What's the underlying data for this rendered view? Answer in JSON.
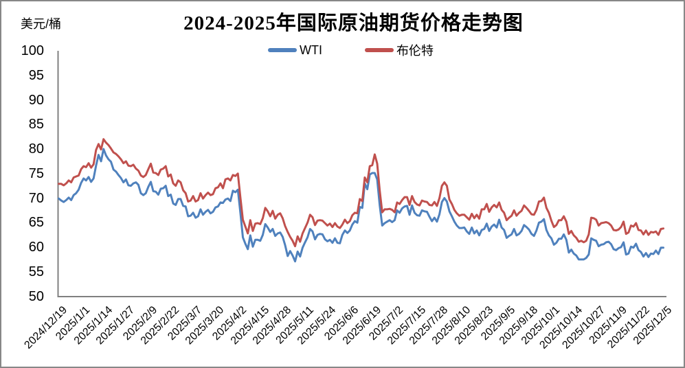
{
  "title": "2024-2025年国际原油期货价格走势图",
  "y_axis_unit": "美元/桶",
  "colors": {
    "wti": "#4F81BD",
    "brent": "#C0504D",
    "axis": "#808080"
  },
  "chart_data": {
    "type": "line",
    "title": "2024-2025年国际原油期货价格走势图",
    "xlabel": "",
    "ylabel": "美元/桶",
    "ylim": [
      50,
      100
    ],
    "y_ticks": [
      100,
      95,
      90,
      85,
      80,
      75,
      70,
      65,
      60,
      55,
      50
    ],
    "grid": false,
    "legend_position": "top",
    "x_tick_labels": [
      "2024/12/19",
      "2025/1/1",
      "2025/1/14",
      "2025/1/27",
      "2025/2/9",
      "2025/2/22",
      "2025/3/7",
      "2025/3/20",
      "2025/4/2",
      "2025/4/15",
      "2025/4/28",
      "2025/5/11",
      "2025/5/24",
      "2025/6/6",
      "2025/6/19",
      "2025/7/2",
      "2025/7/15",
      "2025/7/28",
      "2025/8/10",
      "2025/8/23",
      "2025/9/5",
      "2025/9/18",
      "2025/10/1",
      "2025/10/14",
      "2025/10/27",
      "2025/11/9",
      "2025/11/22",
      "2025/12/5"
    ],
    "points_per_label": 9,
    "series": [
      {
        "name": "WTI",
        "color": "#4F81BD",
        "values": [
          69.9,
          69.5,
          69.2,
          69.6,
          70.1,
          69.6,
          70.6,
          71.0,
          71.7,
          73.1,
          74.0,
          73.6,
          74.3,
          73.3,
          74.0,
          76.6,
          78.8,
          77.5,
          80.0,
          78.7,
          77.9,
          77.4,
          75.8,
          75.4,
          74.7,
          74.1,
          73.2,
          73.8,
          72.6,
          72.5,
          73.0,
          73.2,
          72.7,
          71.0,
          70.6,
          71.0,
          72.3,
          73.3,
          71.4,
          71.3,
          70.7,
          71.9,
          72.0,
          72.5,
          70.4,
          70.7,
          68.9,
          68.6,
          69.8,
          69.8,
          68.4,
          68.3,
          66.3,
          66.4,
          67.0,
          66.0,
          66.3,
          67.7,
          66.6,
          67.2,
          67.6,
          66.9,
          67.2,
          68.1,
          68.3,
          69.1,
          69.0,
          69.7,
          69.9,
          69.4,
          71.5,
          71.2,
          71.7,
          67.0,
          62.0,
          60.7,
          59.6,
          62.4,
          60.1,
          61.5,
          61.5,
          61.3,
          62.5,
          64.7,
          64.0,
          63.1,
          63.7,
          62.3,
          62.8,
          63.0,
          62.1,
          60.4,
          58.2,
          59.2,
          58.3,
          57.1,
          59.1,
          58.1,
          59.9,
          61.0,
          62.0,
          63.7,
          63.2,
          61.6,
          62.5,
          62.7,
          62.6,
          61.6,
          61.2,
          61.5,
          60.9,
          61.8,
          60.9,
          60.8,
          62.5,
          63.4,
          62.9,
          63.4,
          64.6,
          65.3,
          65.0,
          68.2,
          68.0,
          73.0,
          71.8,
          74.8,
          75.1,
          75.1,
          73.8,
          68.5,
          64.4,
          64.9,
          65.2,
          65.5,
          65.1,
          65.5,
          67.5,
          67.0,
          67.9,
          68.3,
          68.4,
          66.6,
          68.5,
          67.0,
          66.5,
          66.4,
          67.5,
          67.3,
          67.2,
          66.2,
          65.3,
          66.0,
          65.2,
          66.7,
          69.2,
          70.0,
          69.3,
          67.3,
          66.3,
          65.2,
          64.4,
          63.9,
          63.9,
          64.0,
          63.2,
          62.7,
          64.0,
          62.8,
          63.4,
          62.4,
          63.5,
          63.7,
          64.8,
          63.3,
          64.2,
          64.6,
          64.0,
          65.6,
          64.0,
          63.5,
          61.9,
          62.3,
          62.6,
          63.7,
          62.4,
          62.7,
          63.3,
          64.5,
          64.1,
          63.6,
          62.7,
          62.3,
          63.4,
          65.0,
          65.2,
          65.7,
          63.5,
          62.4,
          61.8,
          60.5,
          60.9,
          61.7,
          61.7,
          62.6,
          61.5,
          58.9,
          59.5,
          58.7,
          58.3,
          57.5,
          57.5,
          57.5,
          57.8,
          58.5,
          61.8,
          61.5,
          61.3,
          60.2,
          60.5,
          60.6,
          61.0,
          61.1,
          60.6,
          59.6,
          59.4,
          59.8,
          60.0,
          61.0,
          58.5,
          58.7,
          60.1,
          59.9,
          60.7,
          59.4,
          59.0,
          58.1,
          58.8,
          58.0,
          58.7,
          58.6,
          59.3,
          58.6,
          59.9,
          59.9
        ]
      },
      {
        "name": "布伦特",
        "color": "#C0504D",
        "values": [
          72.9,
          72.9,
          72.6,
          73.0,
          73.6,
          73.2,
          74.2,
          74.4,
          74.6,
          75.9,
          76.5,
          76.3,
          77.1,
          76.2,
          76.9,
          79.8,
          81.0,
          79.9,
          82.0,
          81.3,
          80.8,
          80.1,
          79.3,
          79.0,
          78.5,
          77.9,
          77.1,
          77.5,
          76.6,
          76.5,
          76.8,
          76.0,
          75.6,
          74.6,
          74.3,
          74.7,
          75.9,
          77.0,
          75.2,
          75.1,
          74.7,
          75.8,
          76.0,
          76.5,
          74.4,
          74.8,
          73.0,
          72.5,
          73.6,
          73.2,
          71.6,
          71.0,
          69.3,
          69.5,
          70.4,
          69.3,
          69.6,
          71.0,
          69.9,
          70.6,
          71.1,
          70.6,
          70.8,
          72.0,
          72.2,
          73.0,
          72.0,
          73.8,
          74.0,
          73.6,
          74.7,
          74.5,
          75.0,
          70.1,
          65.6,
          64.2,
          62.8,
          65.5,
          63.3,
          64.8,
          64.9,
          64.7,
          65.9,
          68.0,
          67.3,
          66.3,
          67.4,
          65.8,
          66.6,
          66.9,
          65.9,
          64.3,
          63.1,
          62.1,
          61.3,
          60.2,
          62.2,
          61.1,
          62.8,
          63.9,
          65.0,
          66.6,
          66.1,
          64.5,
          65.4,
          65.5,
          65.4,
          64.9,
          64.4,
          64.8,
          64.1,
          64.9,
          64.2,
          63.9,
          64.6,
          65.6,
          64.9,
          65.3,
          66.5,
          67.0,
          66.9,
          69.8,
          69.4,
          74.2,
          73.2,
          76.5,
          76.7,
          78.9,
          77.0,
          71.5,
          67.1,
          67.7,
          67.7,
          67.8,
          67.6,
          67.1,
          69.1,
          68.8,
          69.6,
          70.2,
          70.2,
          68.6,
          70.4,
          69.2,
          68.7,
          68.5,
          69.5,
          69.3,
          69.2,
          68.6,
          68.5,
          69.2,
          68.4,
          70.0,
          72.5,
          73.2,
          72.5,
          69.7,
          68.8,
          67.6,
          66.9,
          66.4,
          66.6,
          66.6,
          66.1,
          65.6,
          66.8,
          65.9,
          66.6,
          65.8,
          67.7,
          67.7,
          68.8,
          67.2,
          68.1,
          68.6,
          68.1,
          69.1,
          67.6,
          67.0,
          65.5,
          66.0,
          66.4,
          67.5,
          66.4,
          67.0,
          67.4,
          68.5,
          68.0,
          67.4,
          66.7,
          66.6,
          67.6,
          69.3,
          69.4,
          70.1,
          68.0,
          67.0,
          65.4,
          64.1,
          64.5,
          65.5,
          65.5,
          66.3,
          65.2,
          62.7,
          63.3,
          62.4,
          61.9,
          61.1,
          61.3,
          61.0,
          61.3,
          62.6,
          66.0,
          65.9,
          65.6,
          64.4,
          64.9,
          65.0,
          65.1,
          64.9,
          64.4,
          63.5,
          63.4,
          63.6,
          64.1,
          65.2,
          62.7,
          63.0,
          64.4,
          64.2,
          64.9,
          63.5,
          63.4,
          62.6,
          63.4,
          62.5,
          63.1,
          63.0,
          63.2,
          62.5,
          63.7,
          63.8
        ]
      }
    ]
  }
}
